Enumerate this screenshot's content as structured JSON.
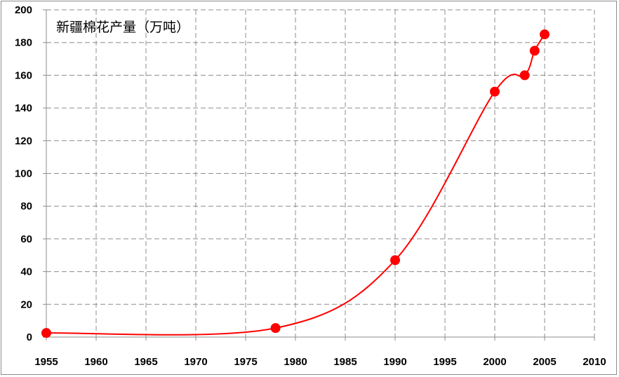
{
  "chart_data": {
    "type": "line",
    "title": "新疆棉花产量（万吨）",
    "xlabel": "",
    "ylabel": "",
    "xlim": [
      1955,
      2010
    ],
    "ylim": [
      0,
      200
    ],
    "x_ticks": [
      "1955",
      "1960",
      "1965",
      "1970",
      "1975",
      "1980",
      "1985",
      "1990",
      "1995",
      "2000",
      "2005",
      "2010"
    ],
    "y_ticks": [
      "0",
      "20",
      "40",
      "60",
      "80",
      "100",
      "120",
      "140",
      "160",
      "180",
      "200"
    ],
    "grid": true,
    "legend": "none",
    "series": [
      {
        "color": "#ff0000",
        "x": [
          1955,
          1978,
          1990,
          2000,
          2003,
          2004,
          2005
        ],
        "y": [
          2.5,
          5.5,
          47,
          150,
          160,
          175,
          185
        ]
      }
    ]
  }
}
